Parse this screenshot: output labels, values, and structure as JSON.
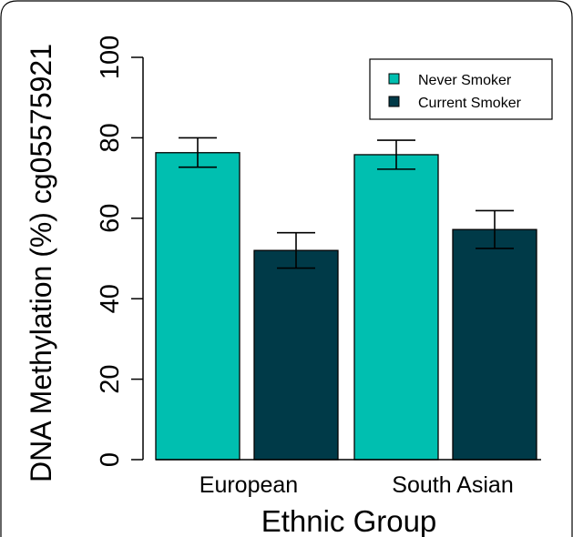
{
  "chart_data": {
    "type": "bar",
    "title": "",
    "xlabel": "Ethnic Group",
    "ylabel": "DNA Methylation (%) cg05575921",
    "categories": [
      "European",
      "South Asian"
    ],
    "ylim": [
      0,
      100
    ],
    "yticks": [
      "0",
      "20",
      "40",
      "60",
      "80",
      "100"
    ],
    "grid": false,
    "legend_position": "top-right",
    "series": [
      {
        "name": "Never Smoker",
        "color": "#00bfb0",
        "values": [
          76.3,
          75.8
        ],
        "err_low": [
          72.7,
          72.2
        ],
        "err_high": [
          80.0,
          79.4
        ]
      },
      {
        "name": "Current Smoker",
        "color": "#003a48",
        "values": [
          52.0,
          57.2
        ],
        "err_low": [
          47.6,
          52.5
        ],
        "err_high": [
          56.4,
          61.9
        ]
      }
    ]
  }
}
